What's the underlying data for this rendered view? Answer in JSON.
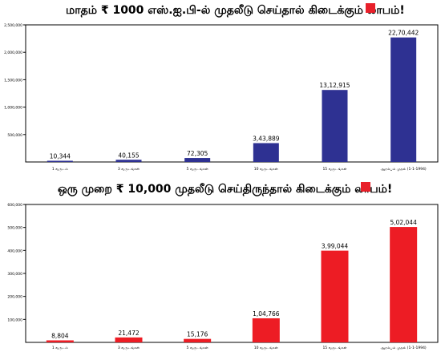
{
  "chart_data": [
    {
      "type": "bar",
      "title": "மாதம் ₹ 1000 எஸ்.ஐ.பி-ல் முதலீடு செய்தால் கிடைக்கும் லாபம்!",
      "categories": [
        "1 வருடம்",
        "3 வருடங்கள்",
        "5 வருடங்கள்",
        "10 வருடங்கள்",
        "15 வருடங்கள்",
        "ஆரம்பம் முதல் (1-1-1994)"
      ],
      "values": [
        10344,
        40155,
        72305,
        343889,
        1312915,
        2270442
      ],
      "value_labels": [
        "10,344",
        "40,155",
        "72,305",
        "3,43,889",
        "13,12,915",
        "22,70,442"
      ],
      "yticks": [
        500000,
        1000000,
        1500000,
        2000000,
        2500000
      ],
      "ytick_labels": [
        "500,000",
        "1,000,000",
        "1,500,000",
        "2,000,000",
        "2,500,000"
      ],
      "ylim": [
        0,
        2500000
      ],
      "color": "#2e3192",
      "grid": false
    },
    {
      "type": "bar",
      "title": "ஒரு முறை ₹ 10,000 முதலீடு செய்திருந்தால் கிடைக்கும் லாபம்!",
      "categories": [
        "1 வருடம்",
        "3 வருடங்கள்",
        "5 வருடங்கள்",
        "10 வருடங்கள்",
        "15 வருடங்கள்",
        "ஆரம்பம் முதல் (1-1-1994)"
      ],
      "values": [
        8804,
        21472,
        15176,
        104766,
        399044,
        502044
      ],
      "value_labels": [
        "8,804",
        "21,472",
        "15,176",
        "1,04,766",
        "3,99,044",
        "5,02,044"
      ],
      "yticks": [
        100000,
        200000,
        300000,
        400000,
        500000,
        600000
      ],
      "ytick_labels": [
        "100,000",
        "200,000",
        "300,000",
        "400,000",
        "500,000",
        "600,000"
      ],
      "ylim": [
        0,
        600000
      ],
      "color": "#ed1c24",
      "grid": false
    }
  ]
}
